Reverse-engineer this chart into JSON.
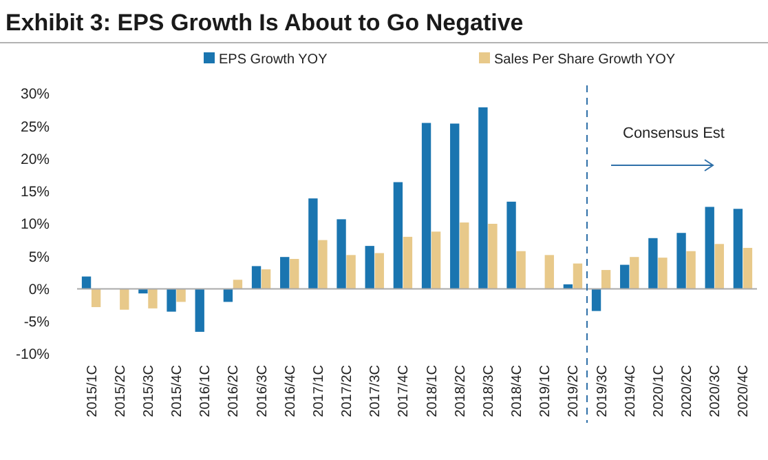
{
  "chart_data": {
    "type": "bar",
    "title": "Exhibit 3:  EPS Growth Is About to Go Negative",
    "categories": [
      "2015/1C",
      "2015/2C",
      "2015/3C",
      "2015/4C",
      "2016/1C",
      "2016/2C",
      "2016/3C",
      "2016/4C",
      "2017/1C",
      "2017/2C",
      "2017/3C",
      "2017/4C",
      "2018/1C",
      "2018/2C",
      "2018/3C",
      "2018/4C",
      "2019/1C",
      "2019/2C",
      "2019/3C",
      "2019/4C",
      "2020/1C",
      "2020/2C",
      "2020/3C",
      "2020/4C"
    ],
    "series": [
      {
        "name": "EPS Growth YOY",
        "color": "#1a75b0",
        "values": [
          1.9,
          0,
          -0.7,
          -3.5,
          -6.6,
          -2.0,
          3.5,
          4.9,
          13.9,
          10.7,
          6.6,
          16.4,
          25.5,
          25.4,
          27.9,
          13.4,
          0,
          0.7,
          -3.4,
          3.7,
          7.8,
          8.6,
          12.6,
          12.3
        ]
      },
      {
        "name": "Sales Per Share Growth YOY",
        "color": "#e8c98a",
        "values": [
          -2.8,
          -3.2,
          -3.0,
          -2.0,
          0,
          1.4,
          3.0,
          4.6,
          7.5,
          5.2,
          5.5,
          8.0,
          8.8,
          10.2,
          10.0,
          5.8,
          5.2,
          3.9,
          2.9,
          4.9,
          4.8,
          5.8,
          6.9,
          6.3
        ]
      }
    ],
    "ylim": [
      -10,
      30
    ],
    "yticks": [
      {
        "value": -10,
        "label": "-10%"
      },
      {
        "value": -5,
        "label": "-5%"
      },
      {
        "value": 0,
        "label": "0%"
      },
      {
        "value": 5,
        "label": "5%"
      },
      {
        "value": 10,
        "label": "10%"
      },
      {
        "value": 15,
        "label": "15%"
      },
      {
        "value": 20,
        "label": "20%"
      },
      {
        "value": 25,
        "label": "25%"
      },
      {
        "value": 30,
        "label": "30%"
      }
    ],
    "ref_lines": [
      {
        "axis": "x",
        "value": "2019/2C",
        "label": "Consensus Est",
        "color": "#2e6fa8",
        "line_style": "dashed"
      }
    ],
    "grid": false,
    "legend": "top"
  }
}
